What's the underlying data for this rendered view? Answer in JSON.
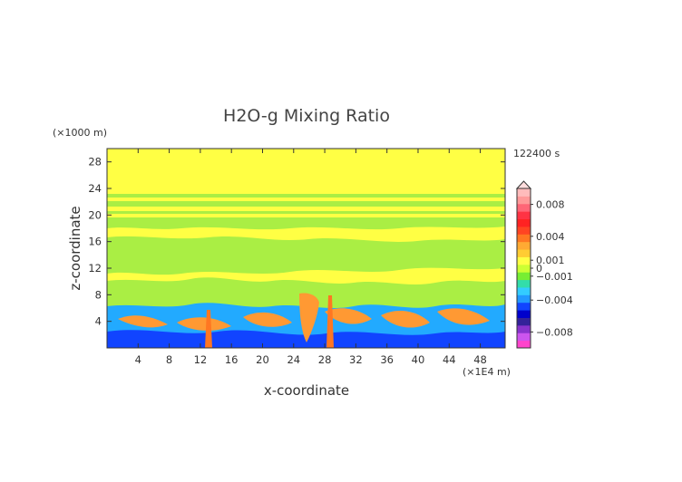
{
  "chart_data": {
    "type": "heatmap",
    "title": "H2O-g Mixing Ratio",
    "xlabel": "x-coordinate",
    "ylabel": "z-coordinate",
    "x_unit": "(×1E4 m)",
    "y_unit": "(×1000 m)",
    "time_label": "122400 s",
    "xlim": [
      0,
      51.2
    ],
    "ylim": [
      0,
      30
    ],
    "x_ticks": [
      "4",
      "8",
      "12",
      "16",
      "20",
      "24",
      "28",
      "32",
      "36",
      "40",
      "44",
      "48"
    ],
    "y_ticks": [
      "4",
      "8",
      "12",
      "16",
      "20",
      "24",
      "28"
    ],
    "colorbar": {
      "range": [
        -0.01,
        0.01
      ],
      "tick_labels": [
        {
          "value": 0.008,
          "label": "0.008"
        },
        {
          "value": 0.004,
          "label": "0.004"
        },
        {
          "value": 0.001,
          "label": "0.001"
        },
        {
          "value": 0,
          "label": "0"
        },
        {
          "value": -0.001,
          "label": "−0.001"
        },
        {
          "value": -0.004,
          "label": "−0.004"
        },
        {
          "value": -0.008,
          "label": "−0.008"
        }
      ],
      "colors": [
        "#ff44cc",
        "#cc55ee",
        "#8833cc",
        "#332299",
        "#0000cc",
        "#1144ff",
        "#2299ff",
        "#33ccff",
        "#33ddaa",
        "#77ee33",
        "#ccff33",
        "#ffff44",
        "#ffcc33",
        "#ffaa33",
        "#ff7722",
        "#ff4422",
        "#ff2222",
        "#ff3344",
        "#ff6677",
        "#ff9999",
        "#ffbbbb"
      ],
      "extend_top": true
    },
    "field_description_colors": {
      "background": "#ffff44",
      "band": "#aaee44",
      "positive_plumes": "#ff9933",
      "negative_layer": "#22aaff",
      "deep_negative": "#1144ff"
    }
  }
}
